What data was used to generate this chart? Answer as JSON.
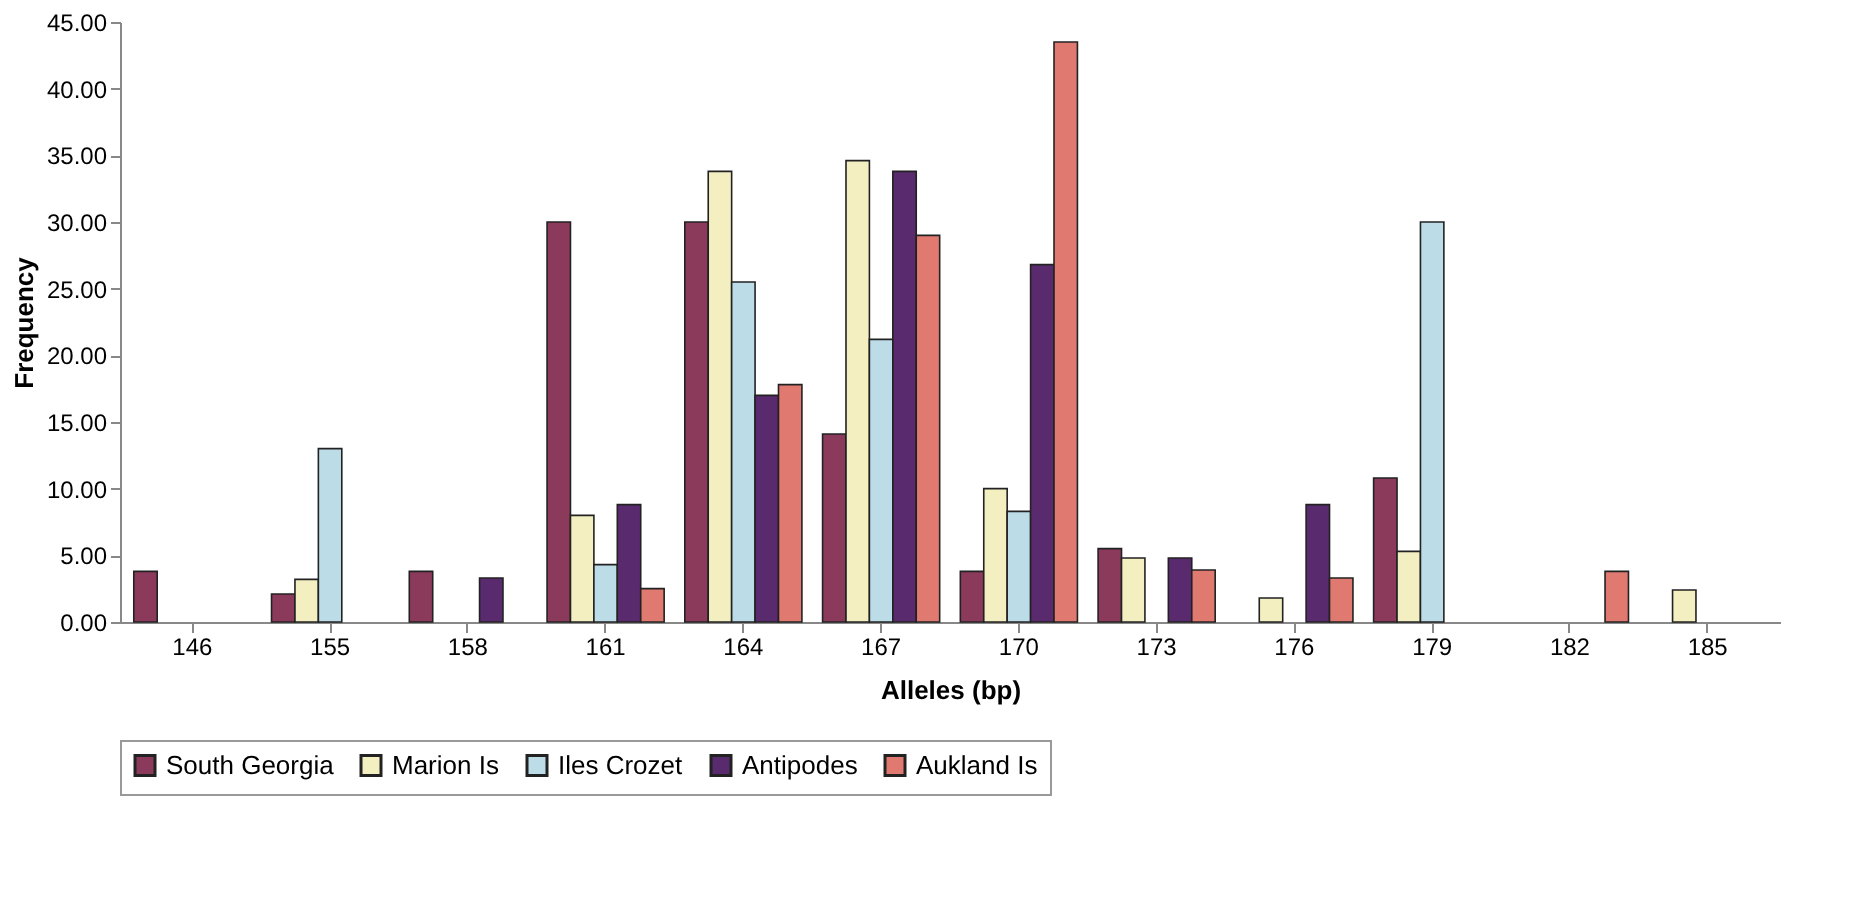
{
  "chart_data": {
    "type": "bar",
    "xlabel": "Alleles (bp)",
    "ylabel": "Frequency",
    "categories": [
      "146",
      "155",
      "158",
      "161",
      "164",
      "167",
      "170",
      "173",
      "176",
      "179",
      "182",
      "185"
    ],
    "series": [
      {
        "name": "South Georgia",
        "color": "#8b3a5c",
        "values": [
          3.8,
          2.1,
          3.8,
          30,
          30,
          14.1,
          3.8,
          5.5,
          null,
          10.8,
          null,
          null
        ]
      },
      {
        "name": "Marion Is",
        "color": "#f3efc0",
        "values": [
          null,
          3.2,
          null,
          8,
          33.8,
          34.6,
          10,
          4.8,
          1.8,
          5.3,
          null,
          2.4
        ]
      },
      {
        "name": "Iles Crozet",
        "color": "#bcdde8",
        "values": [
          null,
          13,
          null,
          4.3,
          25.5,
          21.2,
          8.3,
          null,
          null,
          30,
          null,
          null
        ]
      },
      {
        "name": "Antipodes",
        "color": "#5a2a6e",
        "values": [
          null,
          null,
          3.3,
          8.8,
          17,
          33.8,
          26.8,
          4.8,
          8.8,
          null,
          null,
          null
        ]
      },
      {
        "name": "Aukland Is",
        "color": "#e07a70",
        "values": [
          null,
          null,
          null,
          2.5,
          17.8,
          29,
          43.5,
          3.9,
          3.3,
          null,
          3.8,
          null
        ]
      }
    ],
    "ylim": [
      0,
      45
    ],
    "yticks": [
      {
        "value": 0,
        "label": "0.00"
      },
      {
        "value": 5,
        "label": "5.00"
      },
      {
        "value": 10,
        "label": "10.00"
      },
      {
        "value": 15,
        "label": "15.00"
      },
      {
        "value": 20,
        "label": "20.00"
      },
      {
        "value": 25,
        "label": "25.00"
      },
      {
        "value": 30,
        "label": "30.00"
      },
      {
        "value": 35,
        "label": "35.00"
      },
      {
        "value": 40,
        "label": "40.00"
      },
      {
        "value": 45,
        "label": "45.00"
      }
    ],
    "grid": false,
    "legend": "bottom"
  }
}
